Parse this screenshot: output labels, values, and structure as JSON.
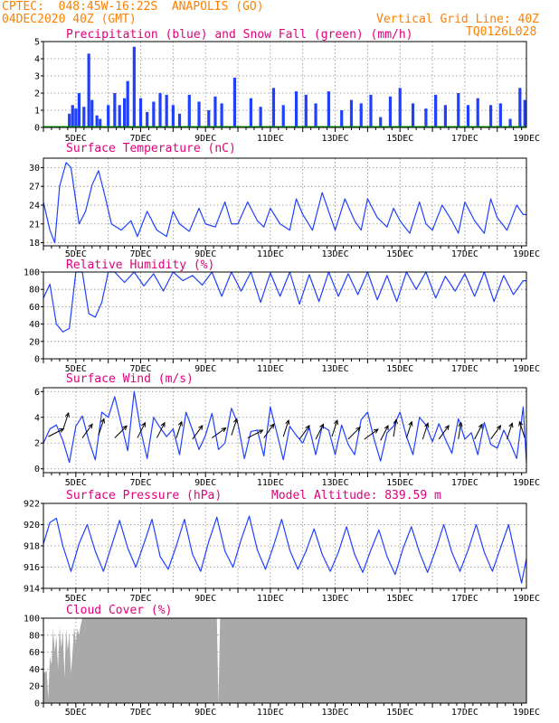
{
  "header": {
    "line1_left": "CPTEC:  048:45W-16:22S  ANAPOLIS (GO)",
    "line2_left": "04DEC2020 40Z (GMT)",
    "line2_right": "Vertical Grid Line: 40Z",
    "line3_right": "TQ0126L028"
  },
  "colors": {
    "header": "#ff7f00",
    "title": "#e0007a",
    "line": "#2040ff",
    "snow": "#00a000",
    "cloud": "#a9a9a9"
  },
  "chart_data": [
    {
      "type": "bar",
      "title": "Precipitation (blue) and Snow Fall (green) (mm/h)",
      "ylim": [
        0,
        5
      ],
      "yticks": [
        "0",
        "1",
        "2",
        "3",
        "4",
        "5"
      ],
      "xticks": [
        "5DEC",
        "7DEC",
        "9DEC",
        "11DEC",
        "13DEC",
        "15DEC",
        "17DEC",
        "19DEC"
      ],
      "series": [
        {
          "name": "Precipitation",
          "x": [
            4.9,
            5.0,
            5.1,
            5.2,
            5.35,
            5.5,
            5.6,
            5.75,
            5.85,
            6.1,
            6.3,
            6.45,
            6.6,
            6.7,
            6.9,
            7.1,
            7.3,
            7.5,
            7.7,
            7.9,
            8.1,
            8.3,
            8.6,
            8.9,
            9.2,
            9.4,
            9.6,
            10.0,
            10.5,
            10.8,
            11.2,
            11.5,
            11.9,
            12.2,
            12.5,
            12.9,
            13.3,
            13.6,
            13.9,
            14.2,
            14.5,
            14.8,
            15.1,
            15.5,
            15.9,
            16.2,
            16.5,
            16.9,
            17.2,
            17.5,
            17.9,
            18.2,
            18.5,
            18.8,
            18.95
          ],
          "values": [
            0.8,
            1.3,
            1.1,
            2.0,
            1.2,
            4.3,
            1.6,
            0.7,
            0.5,
            1.3,
            2.0,
            1.3,
            1.7,
            2.7,
            4.7,
            1.7,
            0.9,
            1.5,
            2.0,
            1.9,
            1.3,
            0.8,
            1.9,
            1.5,
            1.0,
            1.8,
            1.4,
            2.9,
            1.7,
            1.2,
            2.3,
            1.3,
            2.1,
            1.9,
            1.4,
            2.1,
            1.0,
            1.6,
            1.4,
            1.9,
            0.6,
            1.8,
            2.3,
            1.4,
            1.1,
            1.9,
            1.3,
            2.0,
            1.3,
            1.7,
            1.3,
            1.4,
            0.5,
            2.3,
            1.6
          ]
        },
        {
          "name": "Snow Fall",
          "x": [
            4.1,
            19.0
          ],
          "values": [
            0,
            0
          ]
        }
      ]
    },
    {
      "type": "line",
      "title": "Surface Temperature (nC)",
      "ylim": [
        17.5,
        31.5
      ],
      "yticks": [
        "18",
        "21",
        "24",
        "27",
        "30"
      ],
      "xticks": [
        "5DEC",
        "7DEC",
        "9DEC",
        "11DEC",
        "13DEC",
        "15DEC",
        "17DEC",
        "19DEC"
      ],
      "x": [
        4.1,
        4.3,
        4.45,
        4.6,
        4.8,
        4.95,
        5.2,
        5.4,
        5.6,
        5.8,
        5.95,
        6.2,
        6.5,
        6.8,
        7.0,
        7.3,
        7.6,
        7.9,
        8.1,
        8.3,
        8.6,
        8.9,
        9.1,
        9.4,
        9.7,
        9.9,
        10.1,
        10.4,
        10.7,
        10.9,
        11.1,
        11.4,
        11.7,
        11.9,
        12.1,
        12.4,
        12.7,
        12.9,
        13.1,
        13.4,
        13.7,
        13.9,
        14.1,
        14.4,
        14.7,
        14.9,
        15.1,
        15.4,
        15.7,
        15.9,
        16.1,
        16.4,
        16.7,
        16.9,
        17.1,
        17.4,
        17.7,
        17.9,
        18.1,
        18.4,
        18.7,
        18.9,
        19.0
      ],
      "values": [
        24.5,
        20.0,
        18.0,
        27.0,
        30.8,
        30.0,
        21.0,
        23.0,
        27.2,
        29.5,
        26.5,
        21.0,
        20.0,
        21.5,
        19.0,
        23.0,
        20.0,
        19.0,
        23.0,
        21.0,
        19.8,
        23.5,
        21.0,
        20.5,
        24.5,
        21.0,
        21.0,
        24.5,
        21.5,
        20.5,
        23.5,
        21.0,
        20.0,
        25.0,
        22.5,
        20.0,
        26.0,
        23.0,
        20.0,
        25.0,
        21.5,
        20.0,
        25.0,
        22.0,
        20.5,
        23.5,
        21.5,
        19.5,
        24.5,
        21.0,
        20.0,
        24.0,
        21.5,
        19.5,
        24.5,
        21.5,
        19.5,
        25.0,
        22.0,
        20.0,
        24.0,
        22.5,
        22.5
      ]
    },
    {
      "type": "line",
      "title": "Relative Humidity (%)",
      "ylim": [
        0,
        100
      ],
      "yticks": [
        "0",
        "20",
        "40",
        "60",
        "80",
        "100"
      ],
      "xticks": [
        "5DEC",
        "7DEC",
        "9DEC",
        "11DEC",
        "13DEC",
        "15DEC",
        "17DEC",
        "19DEC"
      ],
      "x": [
        4.1,
        4.3,
        4.5,
        4.7,
        4.9,
        5.1,
        5.3,
        5.5,
        5.7,
        5.9,
        6.1,
        6.3,
        6.6,
        6.9,
        7.2,
        7.5,
        7.8,
        8.1,
        8.4,
        8.7,
        9.0,
        9.3,
        9.6,
        9.9,
        10.2,
        10.5,
        10.8,
        11.1,
        11.4,
        11.7,
        12.0,
        12.3,
        12.6,
        12.9,
        13.2,
        13.5,
        13.8,
        14.1,
        14.4,
        14.7,
        15.0,
        15.3,
        15.6,
        15.9,
        16.2,
        16.5,
        16.8,
        17.1,
        17.4,
        17.7,
        18.0,
        18.3,
        18.6,
        18.9,
        19.0
      ],
      "values": [
        70,
        86,
        40,
        31,
        35,
        100,
        100,
        52,
        48,
        65,
        100,
        100,
        88,
        100,
        84,
        98,
        78,
        100,
        90,
        96,
        85,
        100,
        72,
        100,
        78,
        100,
        65,
        99,
        72,
        100,
        63,
        97,
        66,
        100,
        72,
        98,
        74,
        100,
        68,
        96,
        66,
        100,
        80,
        100,
        70,
        95,
        78,
        98,
        72,
        100,
        66,
        96,
        74,
        90,
        90
      ]
    },
    {
      "type": "line",
      "title": "Surface Wind (m/s)",
      "ylim": [
        -0.3,
        6.3
      ],
      "yticks": [
        "0",
        "2",
        "4",
        "6"
      ],
      "xticks": [
        "5DEC",
        "7DEC",
        "9DEC",
        "11DEC",
        "13DEC",
        "15DEC",
        "17DEC",
        "19DEC"
      ],
      "x": [
        4.1,
        4.3,
        4.5,
        4.7,
        4.9,
        5.1,
        5.3,
        5.5,
        5.7,
        5.9,
        6.1,
        6.3,
        6.5,
        6.7,
        6.9,
        7.1,
        7.3,
        7.5,
        7.7,
        7.9,
        8.1,
        8.3,
        8.5,
        8.7,
        8.9,
        9.1,
        9.3,
        9.5,
        9.7,
        9.9,
        10.1,
        10.3,
        10.5,
        10.7,
        10.9,
        11.1,
        11.3,
        11.5,
        11.7,
        11.9,
        12.1,
        12.3,
        12.5,
        12.7,
        12.9,
        13.1,
        13.3,
        13.5,
        13.7,
        13.9,
        14.1,
        14.3,
        14.5,
        14.7,
        14.9,
        15.1,
        15.3,
        15.5,
        15.7,
        15.9,
        16.1,
        16.3,
        16.5,
        16.7,
        16.9,
        17.1,
        17.3,
        17.5,
        17.7,
        17.9,
        18.1,
        18.3,
        18.5,
        18.7,
        18.9,
        19.0
      ],
      "values": [
        2.0,
        3.1,
        3.4,
        2.2,
        0.5,
        3.3,
        4.1,
        2.2,
        0.7,
        4.4,
        4.0,
        5.6,
        3.5,
        1.4,
        6.0,
        3.0,
        0.8,
        4.0,
        3.2,
        2.5,
        3.1,
        1.1,
        4.4,
        3.0,
        1.5,
        2.6,
        4.3,
        1.5,
        2.0,
        4.7,
        3.5,
        0.8,
        2.9,
        3.0,
        1.0,
        4.8,
        2.8,
        0.7,
        3.3,
        2.6,
        2.0,
        3.2,
        1.1,
        3.3,
        3.0,
        1.1,
        3.4,
        1.9,
        1.1,
        3.8,
        4.4,
        2.3,
        0.6,
        2.8,
        3.3,
        4.4,
        2.5,
        1.1,
        4.0,
        3.4,
        2.1,
        3.5,
        2.3,
        1.2,
        3.9,
        2.3,
        2.8,
        1.1,
        3.6,
        1.9,
        1.6,
        3.0,
        2.0,
        0.8,
        4.8,
        0.5
      ],
      "arrows_x": [
        4.25,
        4.7,
        5.3,
        5.8,
        6.3,
        7.0,
        7.6,
        8.2,
        8.7,
        9.3,
        9.9,
        10.4,
        10.9,
        11.5,
        12.0,
        12.5,
        13.0,
        13.5,
        14.0,
        14.5,
        14.9,
        15.3,
        15.8,
        16.3,
        16.9,
        17.4,
        17.9,
        18.4,
        18.95
      ],
      "arrows_dir": [
        2.5,
        2.0,
        2.2,
        2.0,
        2.3,
        2.1,
        2.1,
        2.0,
        2.2,
        2.4,
        2.0,
        2.5,
        2.2,
        2.0,
        2.2,
        2.1,
        2.0,
        2.3,
        2.4,
        2.1,
        1.9,
        2.0,
        2.0,
        2.2,
        1.9,
        2.1,
        2.2,
        2.0,
        1.6
      ],
      "arrows_mag": [
        2.5,
        3.0,
        2.4,
        2.6,
        2.4,
        2.4,
        2.4,
        2.4,
        2.3,
        2.4,
        2.6,
        2.4,
        2.4,
        2.5,
        2.3,
        2.3,
        2.5,
        2.3,
        2.3,
        2.2,
        2.5,
        2.4,
        2.3,
        2.3,
        2.3,
        2.3,
        2.3,
        2.3,
        2.4
      ]
    },
    {
      "type": "line",
      "title": "Surface Pressure (hPa)",
      "subtitle": "Model Altitude: 839.59 m",
      "ylim": [
        914,
        922
      ],
      "yticks": [
        "914",
        "916",
        "918",
        "920",
        "922"
      ],
      "xticks": [
        "5DEC",
        "7DEC",
        "9DEC",
        "11DEC",
        "13DEC",
        "15DEC",
        "17DEC",
        "19DEC"
      ],
      "x": [
        4.1,
        4.3,
        4.5,
        4.7,
        4.95,
        5.2,
        5.45,
        5.7,
        5.95,
        6.2,
        6.45,
        6.7,
        6.95,
        7.2,
        7.45,
        7.7,
        7.95,
        8.2,
        8.45,
        8.7,
        8.95,
        9.2,
        9.45,
        9.7,
        9.95,
        10.2,
        10.45,
        10.7,
        10.95,
        11.2,
        11.45,
        11.7,
        11.95,
        12.2,
        12.45,
        12.7,
        12.95,
        13.2,
        13.45,
        13.7,
        13.95,
        14.2,
        14.45,
        14.7,
        14.95,
        15.2,
        15.45,
        15.7,
        15.95,
        16.2,
        16.45,
        16.7,
        16.95,
        17.2,
        17.45,
        17.7,
        17.95,
        18.2,
        18.45,
        18.7,
        18.85,
        19.0
      ],
      "values": [
        918.2,
        920.2,
        920.6,
        918.0,
        915.6,
        918.2,
        920.0,
        917.5,
        915.6,
        918.0,
        920.4,
        917.8,
        916.0,
        918.2,
        920.5,
        917.0,
        915.8,
        918.0,
        920.5,
        917.2,
        915.6,
        918.4,
        920.7,
        917.5,
        916.0,
        918.6,
        920.8,
        917.6,
        915.8,
        918.0,
        920.5,
        917.6,
        915.8,
        917.5,
        919.6,
        917.2,
        915.6,
        917.4,
        919.8,
        917.2,
        915.5,
        917.6,
        919.5,
        917.0,
        915.3,
        917.8,
        919.8,
        917.4,
        915.5,
        917.6,
        920.0,
        917.4,
        915.6,
        917.6,
        920.0,
        917.4,
        915.6,
        917.8,
        920.0,
        916.5,
        914.5,
        916.8
      ]
    },
    {
      "type": "area",
      "title": "Cloud Cover (%)",
      "ylim": [
        0,
        100
      ],
      "yticks": [
        "0",
        "20",
        "40",
        "60",
        "80",
        "100"
      ],
      "xticks": [
        "5DEC",
        "7DEC",
        "9DEC",
        "11DEC",
        "13DEC",
        "15DEC",
        "17DEC",
        "19DEC"
      ],
      "x": [
        4.1,
        4.2,
        4.25,
        4.3,
        4.35,
        4.4,
        4.45,
        4.5,
        4.55,
        4.6,
        4.65,
        4.7,
        4.75,
        4.8,
        4.85,
        4.9,
        4.95,
        5.0,
        5.05,
        5.1,
        5.15,
        5.2,
        5.25,
        5.3,
        9.45,
        9.5,
        9.55,
        19.0
      ],
      "values": [
        35,
        38,
        5,
        55,
        45,
        88,
        60,
        80,
        40,
        90,
        65,
        85,
        30,
        88,
        62,
        82,
        35,
        60,
        90,
        70,
        88,
        80,
        92,
        100,
        100,
        0,
        100,
        100
      ]
    }
  ]
}
